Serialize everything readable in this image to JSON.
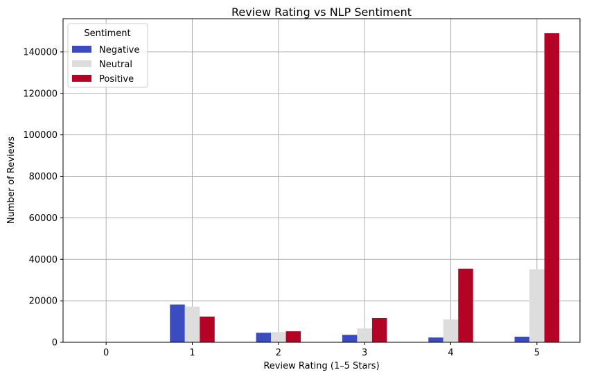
{
  "chart_data": {
    "type": "bar",
    "title": "Review Rating vs NLP Sentiment",
    "xlabel": "Review Rating (1–5 Stars)",
    "ylabel": "Number of Reviews",
    "categories": [
      "0",
      "1",
      "2",
      "3",
      "4",
      "5"
    ],
    "series": [
      {
        "name": "Negative",
        "color": "#3b4cc0",
        "values": [
          0,
          18200,
          4600,
          3600,
          2300,
          2700
        ]
      },
      {
        "name": "Neutral",
        "color": "#dddddd",
        "values": [
          0,
          17200,
          4900,
          6700,
          11000,
          35200
        ]
      },
      {
        "name": "Positive",
        "color": "#b40426",
        "values": [
          0,
          12400,
          5300,
          11700,
          35500,
          149000
        ]
      }
    ],
    "ylim": [
      0,
      156000
    ],
    "yticks": [
      0,
      20000,
      40000,
      60000,
      80000,
      100000,
      120000,
      140000
    ],
    "grid": true,
    "legend": {
      "title": "Sentiment",
      "position": "top-left"
    }
  }
}
